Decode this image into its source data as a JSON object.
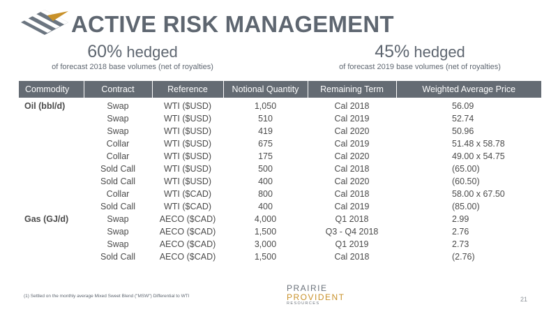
{
  "slide": {
    "title": "ACTIVE RISK MANAGEMENT",
    "stats": [
      {
        "value": "60%",
        "label": "hedged",
        "subtitle": "of forecast 2018 base volumes (net of royalties)"
      },
      {
        "value": "45%",
        "label": "hedged",
        "subtitle": "of forecast 2019 base volumes (net of royalties)"
      }
    ],
    "footnote": "(1)   Settled on the monthly average Mixed Sweet Blend (\"MSW\") Differential to WTI",
    "brand": {
      "line1": "PRAIRIE",
      "line2": "PROVIDENT",
      "line3": "RESOURCES"
    },
    "page_number": "21"
  },
  "colors": {
    "header_bg": "#646b73",
    "title": "#5e6670",
    "brand_accent": "#c8912a"
  },
  "icons": {
    "logo": "diamond-stripes-logo"
  },
  "table": {
    "headers": [
      "Commodity",
      "Contract",
      "Reference",
      "Notional Quantity",
      "Remaining Term",
      "Weighted Average Price"
    ],
    "rows": [
      {
        "commodity": "Oil (bbl/d)",
        "contract": "Swap",
        "reference": "WTI ($USD)",
        "quantity": "1,050",
        "term": "Cal 2018",
        "price": "56.09"
      },
      {
        "commodity": "",
        "contract": "Swap",
        "reference": "WTI ($USD)",
        "quantity": "510",
        "term": "Cal 2019",
        "price": "52.74"
      },
      {
        "commodity": "",
        "contract": "Swap",
        "reference": "WTI ($USD)",
        "quantity": "419",
        "term": "Cal 2020",
        "price": "50.96"
      },
      {
        "commodity": "",
        "contract": "Collar",
        "reference": "WTI ($USD)",
        "quantity": "675",
        "term": "Cal 2019",
        "price": "51.48  x  58.78"
      },
      {
        "commodity": "",
        "contract": "Collar",
        "reference": "WTI ($USD)",
        "quantity": "175",
        "term": "Cal 2020",
        "price": "49.00  x  54.75"
      },
      {
        "commodity": "",
        "contract": "Sold Call",
        "reference": "WTI ($USD)",
        "quantity": "500",
        "term": "Cal 2018",
        "price": "(65.00)"
      },
      {
        "commodity": "",
        "contract": "Sold Call",
        "reference": "WTI ($USD)",
        "quantity": "400",
        "term": "Cal 2020",
        "price": "(60.50)"
      },
      {
        "commodity": "",
        "contract": "Collar",
        "reference": "WTI ($CAD)",
        "quantity": "800",
        "term": "Cal 2018",
        "price": "58.00  x  67.50"
      },
      {
        "commodity": "",
        "contract": "Sold Call",
        "reference": "WTI ($CAD)",
        "quantity": "400",
        "term": "Cal 2019",
        "price": "(85.00)"
      },
      {
        "commodity": "Gas (GJ/d)",
        "contract": "Swap",
        "reference": "AECO ($CAD)",
        "quantity": "4,000",
        "term": "Q1 2018",
        "price": "2.99"
      },
      {
        "commodity": "",
        "contract": "Swap",
        "reference": "AECO ($CAD)",
        "quantity": "1,500",
        "term": "Q3 - Q4 2018",
        "price": "2.76"
      },
      {
        "commodity": "",
        "contract": "Swap",
        "reference": "AECO ($CAD)",
        "quantity": "3,000",
        "term": "Q1 2019",
        "price": "2.73"
      },
      {
        "commodity": "",
        "contract": "Sold Call",
        "reference": "AECO ($CAD)",
        "quantity": "1,500",
        "term": "Cal 2018",
        "price": "(2.76)"
      }
    ]
  }
}
